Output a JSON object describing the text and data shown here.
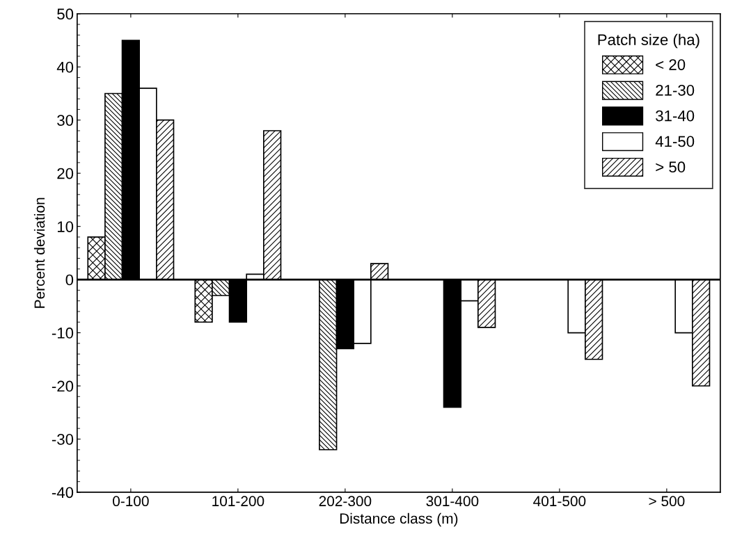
{
  "chart_data": {
    "type": "bar",
    "xlabel": "Distance class (m)",
    "ylabel": "Percent deviation",
    "legend_title": "Patch size (ha)",
    "legend": "top right",
    "categories": [
      "0-100",
      "101-200",
      "202-300",
      "301-400",
      "401-500",
      "> 500"
    ],
    "series": [
      {
        "name": "< 20",
        "color": "#000000",
        "values": [
          8,
          -8,
          null,
          null,
          null,
          null
        ]
      },
      {
        "name": "21-30",
        "color": "#000000",
        "values": [
          35,
          -3,
          -32,
          null,
          null,
          null
        ]
      },
      {
        "name": "31-40",
        "color": "#000000",
        "values": [
          45,
          -8,
          -13,
          -24,
          null,
          null
        ]
      },
      {
        "name": "41-50",
        "color": "#ffffff",
        "values": [
          36,
          1,
          -12,
          -4,
          -10,
          -10
        ]
      },
      {
        "name": "> 50",
        "color": "#000000",
        "values": [
          30,
          28,
          3,
          -9,
          -15,
          -20
        ]
      }
    ],
    "ylim": [
      -40,
      50
    ],
    "yticks": [
      -40,
      -30,
      -20,
      -10,
      0,
      10,
      20,
      30,
      40,
      50
    ],
    "grid": false,
    "ref_lines": [
      {
        "axis": "y",
        "value": 0,
        "color": "#000000"
      }
    ]
  }
}
